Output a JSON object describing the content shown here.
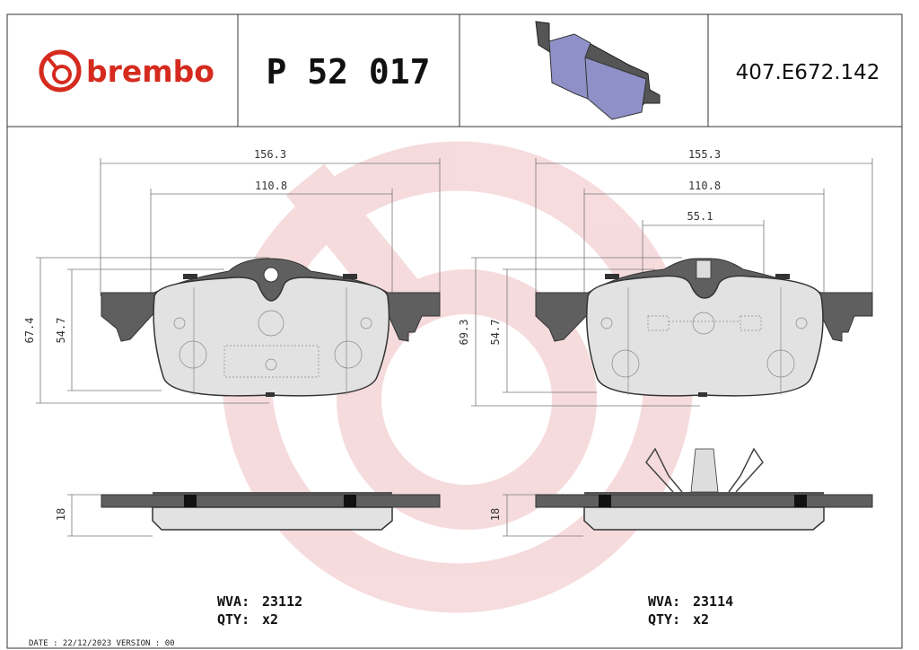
{
  "header": {
    "brand": "brembo",
    "part_number": "P 52 017",
    "code": "407.E672.142"
  },
  "left": {
    "dims": {
      "width_total": "156.3",
      "width_inner": "110.8",
      "height_total": "67.4",
      "height_inner": "54.7",
      "thickness": "18"
    },
    "wva_label": "WVA:",
    "wva": "23112",
    "qty_label": "QTY:",
    "qty": "x2"
  },
  "right": {
    "dims": {
      "width_total": "155.3",
      "width_inner": "110.8",
      "width_center": "55.1",
      "height_total": "69.3",
      "height_inner": "54.7",
      "thickness": "18"
    },
    "wva_label": "WVA:",
    "wva": "23114",
    "qty_label": "QTY:",
    "qty": "x2"
  },
  "footer": "DATE : 22/12/2023 VERSION : 00"
}
